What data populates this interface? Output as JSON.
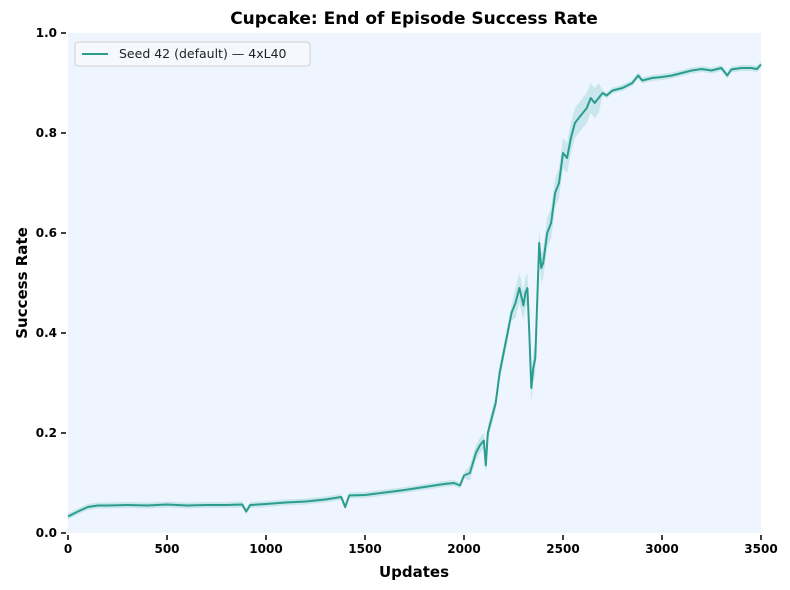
{
  "chart_data": {
    "type": "line",
    "title": "Cupcake: End of Episode Success Rate",
    "xlabel": "Updates",
    "ylabel": "Success Rate",
    "xlim": [
      0,
      3500
    ],
    "ylim": [
      0.0,
      1.0
    ],
    "xticks": [
      "0",
      "500",
      "1000",
      "1500",
      "2000",
      "2500",
      "3000",
      "3500"
    ],
    "yticks": [
      "0.0",
      "0.2",
      "0.4",
      "0.6",
      "0.8",
      "1.0"
    ],
    "grid": false,
    "legend_position": "upper left",
    "series": [
      {
        "name": "Seed 42 (default) — 4xL40",
        "color": "#2a9d8f",
        "band_color": "#a8d8dc",
        "x": [
          0,
          50,
          100,
          150,
          200,
          300,
          400,
          500,
          600,
          700,
          800,
          880,
          900,
          920,
          1000,
          1100,
          1200,
          1300,
          1380,
          1400,
          1420,
          1500,
          1600,
          1700,
          1800,
          1900,
          1950,
          1980,
          2000,
          2030,
          2060,
          2080,
          2100,
          2110,
          2120,
          2140,
          2160,
          2180,
          2200,
          2220,
          2240,
          2260,
          2280,
          2300,
          2310,
          2320,
          2330,
          2340,
          2350,
          2360,
          2380,
          2390,
          2400,
          2420,
          2440,
          2460,
          2480,
          2500,
          2520,
          2540,
          2560,
          2580,
          2600,
          2620,
          2640,
          2660,
          2680,
          2700,
          2720,
          2750,
          2800,
          2850,
          2880,
          2900,
          2950,
          3000,
          3050,
          3100,
          3150,
          3200,
          3250,
          3300,
          3330,
          3350,
          3400,
          3450,
          3480,
          3500
        ],
        "values": [
          0.033,
          0.043,
          0.052,
          0.055,
          0.055,
          0.056,
          0.055,
          0.057,
          0.055,
          0.056,
          0.056,
          0.057,
          0.043,
          0.056,
          0.058,
          0.061,
          0.063,
          0.067,
          0.072,
          0.052,
          0.075,
          0.076,
          0.081,
          0.086,
          0.092,
          0.098,
          0.1,
          0.095,
          0.115,
          0.12,
          0.16,
          0.175,
          0.185,
          0.135,
          0.2,
          0.23,
          0.26,
          0.32,
          0.36,
          0.4,
          0.44,
          0.46,
          0.49,
          0.455,
          0.48,
          0.49,
          0.4,
          0.29,
          0.33,
          0.35,
          0.58,
          0.53,
          0.54,
          0.6,
          0.62,
          0.68,
          0.7,
          0.76,
          0.75,
          0.79,
          0.82,
          0.83,
          0.84,
          0.85,
          0.87,
          0.86,
          0.87,
          0.88,
          0.875,
          0.885,
          0.89,
          0.9,
          0.915,
          0.905,
          0.91,
          0.912,
          0.915,
          0.92,
          0.925,
          0.928,
          0.925,
          0.93,
          0.915,
          0.927,
          0.93,
          0.93,
          0.928,
          0.937
        ]
      }
    ]
  }
}
